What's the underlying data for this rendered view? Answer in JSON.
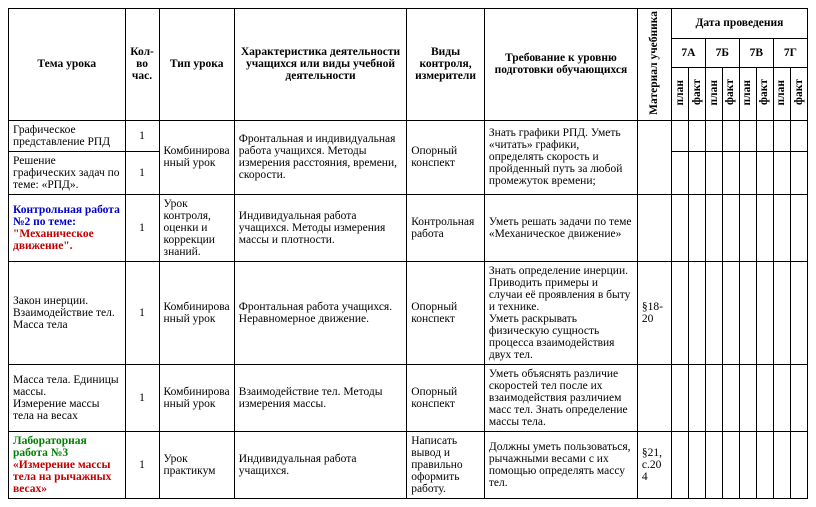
{
  "header": {
    "tema": "Тема урока",
    "kolvo": "Кол-во час.",
    "tip": "Тип урока",
    "harak": "Характеристика деятельности учащихся или виды учебной деятельности",
    "vidy": "Виды контроля, измерители",
    "treb": "Требование к уровню подготовки обучающихся",
    "mat": "Материал учебника",
    "data": "Дата проведения",
    "classes": [
      "7А",
      "7Б",
      "7В",
      "7Г"
    ],
    "plan": "план",
    "fakt": "факт"
  },
  "rows": [
    {
      "tema": "Графическое представление РПД",
      "kolvo": "1",
      "tip": "",
      "harak": "",
      "vidy": "",
      "treb": "",
      "mat": ""
    },
    {
      "tema": "Решение графических задач по теме: «РПД».",
      "kolvo": "1",
      "tip": "Комбинированный урок",
      "harak": "Фронтальная и индивидуальная работа учащихся. Методы измерения расстояния, времени, скорости.",
      "vidy": "Опорный конспект",
      "treb": "Знать графики РПД. Уметь «читать» графики, определять скорость и пройденный путь за любой промежуток времени;",
      "mat": ""
    },
    {
      "tema_html": true,
      "tema_lines": [
        {
          "text": "Контрольная работа №2  по теме: ",
          "cls": "blue"
        },
        {
          "text": "\"Механическое движение\".",
          "cls": "red"
        }
      ],
      "kolvo": "1",
      "tip": "Урок контроля, оценки и коррекции знаний.",
      "harak": "Индивидуальная работа учащихся. Методы измерения массы и плотности.",
      "vidy": "Контрольная работа",
      "treb": "Уметь решать задачи по теме «Механическое движение»",
      "mat": ""
    },
    {
      "tema": "Закон инерции. Взаимодействие тел. Масса тела",
      "kolvo": "1",
      "tip": "Комбинированный урок",
      "harak": "Фронтальная работа учащихся. Неравномерное движение.",
      "vidy": "Опорный конспект",
      "treb": "Знать определение инерции. Приводить примеры и случаи её проявления в быту и технике.\nУметь раскрывать физическую сущность процесса взаимодействия двух тел.",
      "mat": "§18-20"
    },
    {
      "tema": "Масса тела. Единицы массы.\nИзмерение массы тела на весах",
      "kolvo": "1",
      "tip": "Комбинированный урок",
      "harak": "Взаимодействие тел. Методы измерения массы.",
      "vidy": "Опорный конспект",
      "treb": "Уметь объяснять различие скоростей тел после их взаимодействия различием масс тел. Знать определение массы тела.",
      "mat": ""
    },
    {
      "tema_html": true,
      "tema_lines": [
        {
          "text": "Лабораторная работа   №3",
          "cls": "green"
        },
        {
          "text": "«Измерение массы тела на рычажных весах»",
          "cls": "red"
        }
      ],
      "kolvo": "1",
      "tip": "Урок практикум",
      "harak": "Индивидуальная работа учащихся.",
      "vidy": "Написать вывод и правильно оформить работу.",
      "treb": "Должны уметь пользоваться, рычажными весами с их помощью определять массу тел.",
      "mat": "§21, с.204"
    }
  ]
}
